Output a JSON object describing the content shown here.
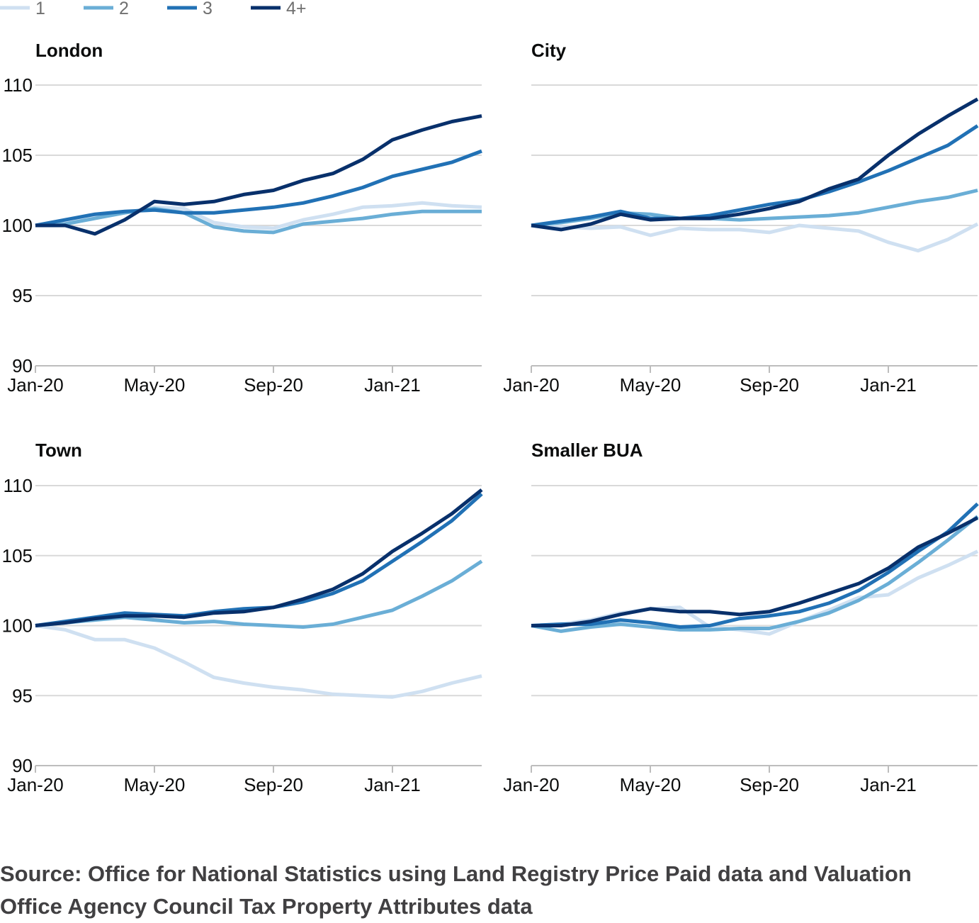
{
  "colors": {
    "1": "#cfe0f1",
    "2": "#6aaed6",
    "3": "#2171b5",
    "4+": "#08306b",
    "grid": "#d9d9d9",
    "axis": "#bdbdbd"
  },
  "chart_data": [
    {
      "type": "line",
      "title": "London",
      "x": [
        "Jan-20",
        "Feb-20",
        "Mar-20",
        "Apr-20",
        "May-20",
        "Jun-20",
        "Jul-20",
        "Aug-20",
        "Sep-20",
        "Oct-20",
        "Nov-20",
        "Dec-20",
        "Jan-21",
        "Feb-21",
        "Mar-21",
        "Apr-21"
      ],
      "xticks": [
        "Jan-20",
        "May-20",
        "Sep-20",
        "Jan-21"
      ],
      "ylim": [
        90,
        110
      ],
      "yticks": [
        90,
        95,
        100,
        105,
        110
      ],
      "grid": true,
      "series": [
        {
          "name": "1",
          "values": [
            100,
            100.2,
            100.6,
            100.9,
            101.3,
            101.2,
            100.2,
            99.9,
            99.8,
            100.4,
            100.8,
            101.3,
            101.4,
            101.6,
            101.4,
            101.3
          ]
        },
        {
          "name": "2",
          "values": [
            100,
            100.1,
            100.5,
            100.9,
            101.2,
            100.9,
            99.9,
            99.6,
            99.5,
            100.1,
            100.3,
            100.5,
            100.8,
            101.0,
            101.0,
            101.0
          ]
        },
        {
          "name": "3",
          "values": [
            100,
            100.4,
            100.8,
            101.0,
            101.1,
            100.9,
            100.9,
            101.1,
            101.3,
            101.6,
            102.1,
            102.7,
            103.5,
            104.0,
            104.5,
            105.3
          ]
        },
        {
          "name": "4+",
          "values": [
            100,
            100,
            99.4,
            100.4,
            101.7,
            101.5,
            101.7,
            102.2,
            102.5,
            103.2,
            103.7,
            104.7,
            106.1,
            106.8,
            107.4,
            107.8
          ]
        }
      ]
    },
    {
      "type": "line",
      "title": "City",
      "x": [
        "Jan-20",
        "Feb-20",
        "Mar-20",
        "Apr-20",
        "May-20",
        "Jun-20",
        "Jul-20",
        "Aug-20",
        "Sep-20",
        "Oct-20",
        "Nov-20",
        "Dec-20",
        "Jan-21",
        "Feb-21",
        "Mar-21",
        "Apr-21"
      ],
      "xticks": [
        "Jan-20",
        "May-20",
        "Sep-20",
        "Jan-21"
      ],
      "ylim": [
        90,
        110
      ],
      "yticks": [
        90,
        95,
        100,
        105,
        110
      ],
      "grid": true,
      "series": [
        {
          "name": "1",
          "values": [
            100,
            99.9,
            99.8,
            99.9,
            99.3,
            99.8,
            99.7,
            99.7,
            99.5,
            100.0,
            99.8,
            99.6,
            98.8,
            98.2,
            99.0,
            100.1
          ]
        },
        {
          "name": "2",
          "values": [
            100,
            100.2,
            100.5,
            100.9,
            100.8,
            100.5,
            100.5,
            100.4,
            100.5,
            100.6,
            100.7,
            100.9,
            101.3,
            101.7,
            102.0,
            102.5
          ]
        },
        {
          "name": "3",
          "values": [
            100,
            100.3,
            100.6,
            101.0,
            100.5,
            100.5,
            100.7,
            101.1,
            101.5,
            101.8,
            102.4,
            103.1,
            103.9,
            104.8,
            105.7,
            107.1
          ]
        },
        {
          "name": "4+",
          "values": [
            100,
            99.7,
            100.1,
            100.8,
            100.4,
            100.5,
            100.5,
            100.8,
            101.2,
            101.7,
            102.6,
            103.3,
            105.0,
            106.5,
            107.8,
            109.0
          ]
        }
      ]
    },
    {
      "type": "line",
      "title": "Town",
      "x": [
        "Jan-20",
        "Feb-20",
        "Mar-20",
        "Apr-20",
        "May-20",
        "Jun-20",
        "Jul-20",
        "Aug-20",
        "Sep-20",
        "Oct-20",
        "Nov-20",
        "Dec-20",
        "Jan-21",
        "Feb-21",
        "Mar-21",
        "Apr-21"
      ],
      "xticks": [
        "Jan-20",
        "May-20",
        "Sep-20",
        "Jan-21"
      ],
      "ylim": [
        90,
        110
      ],
      "yticks": [
        90,
        95,
        100,
        105,
        110
      ],
      "grid": true,
      "series": [
        {
          "name": "1",
          "values": [
            100,
            99.7,
            99.0,
            99.0,
            98.4,
            97.4,
            96.3,
            95.9,
            95.6,
            95.4,
            95.1,
            95.0,
            94.9,
            95.3,
            95.9,
            96.4
          ]
        },
        {
          "name": "2",
          "values": [
            100,
            100.2,
            100.4,
            100.6,
            100.4,
            100.2,
            100.3,
            100.1,
            100.0,
            99.9,
            100.1,
            100.6,
            101.1,
            102.1,
            103.2,
            104.6
          ]
        },
        {
          "name": "3",
          "values": [
            100,
            100.3,
            100.6,
            100.9,
            100.8,
            100.7,
            101.0,
            101.2,
            101.3,
            101.7,
            102.3,
            103.2,
            104.6,
            106.0,
            107.5,
            109.4
          ]
        },
        {
          "name": "4+",
          "values": [
            100,
            100.2,
            100.5,
            100.7,
            100.7,
            100.6,
            100.9,
            101.0,
            101.3,
            101.9,
            102.6,
            103.7,
            105.3,
            106.6,
            108.0,
            109.7
          ]
        }
      ]
    },
    {
      "type": "line",
      "title": "Smaller BUA",
      "x": [
        "Jan-20",
        "Feb-20",
        "Mar-20",
        "Apr-20",
        "May-20",
        "Jun-20",
        "Jul-20",
        "Aug-20",
        "Sep-20",
        "Oct-20",
        "Nov-20",
        "Dec-20",
        "Jan-21",
        "Feb-21",
        "Mar-21",
        "Apr-21"
      ],
      "xticks": [
        "Jan-20",
        "May-20",
        "Sep-20",
        "Jan-21"
      ],
      "ylim": [
        90,
        110
      ],
      "yticks": [
        90,
        95,
        100,
        105,
        110
      ],
      "grid": true,
      "series": [
        {
          "name": "1",
          "values": [
            100,
            100.1,
            100.4,
            100.9,
            101.2,
            101.3,
            99.9,
            99.7,
            99.4,
            100.3,
            101.1,
            102.0,
            102.2,
            103.4,
            104.3,
            105.3
          ]
        },
        {
          "name": "2",
          "values": [
            100,
            99.6,
            99.9,
            100.1,
            99.9,
            99.7,
            99.7,
            99.8,
            99.8,
            100.3,
            100.9,
            101.8,
            103.0,
            104.5,
            106.1,
            107.8
          ]
        },
        {
          "name": "3",
          "values": [
            100,
            100.1,
            100.1,
            100.4,
            100.2,
            99.9,
            100.0,
            100.5,
            100.7,
            101.0,
            101.6,
            102.5,
            103.8,
            105.3,
            106.7,
            108.7
          ]
        },
        {
          "name": "4+",
          "values": [
            100,
            100.0,
            100.3,
            100.8,
            101.2,
            101.0,
            101.0,
            100.8,
            101.0,
            101.6,
            102.3,
            103.0,
            104.1,
            105.6,
            106.6,
            107.7
          ]
        }
      ]
    }
  ],
  "source": "Source: Office for National Statistics using Land Registry Price Paid data and Valuation Office Agency Council Tax Property Attributes data"
}
